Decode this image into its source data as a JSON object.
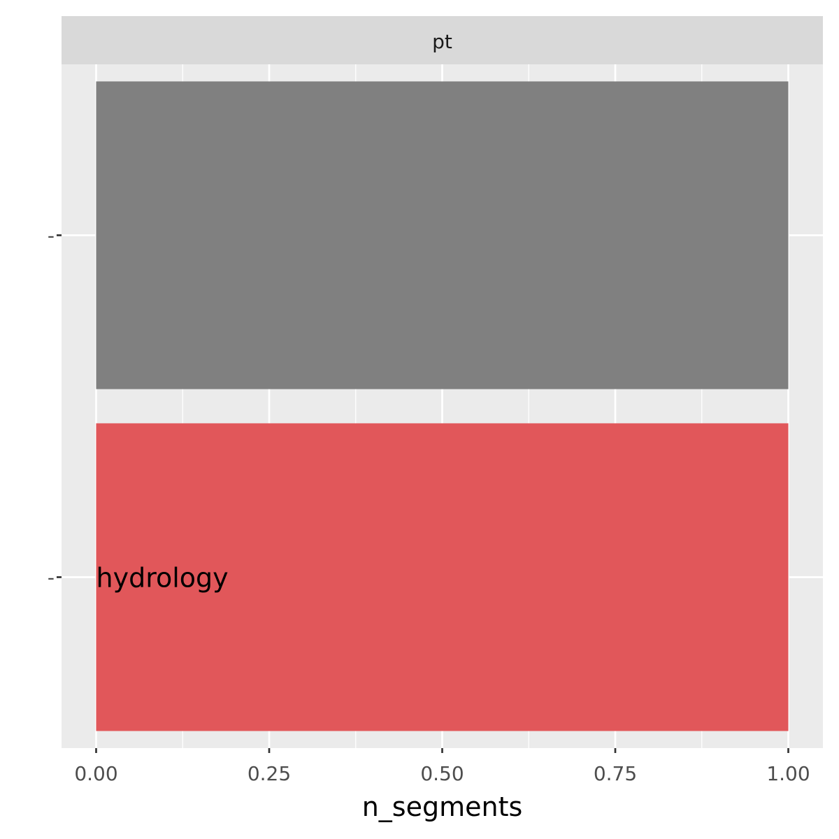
{
  "chart_data": {
    "type": "bar",
    "orientation": "horizontal",
    "facet": "pt",
    "xlabel": "n_segments",
    "ylabel": "",
    "xlim": [
      -0.05,
      1.05
    ],
    "x_ticks": [
      0.0,
      0.25,
      0.5,
      0.75,
      1.0
    ],
    "x_tick_labels": [
      "0.00",
      "0.25",
      "0.50",
      "0.75",
      "1.00"
    ],
    "categories": [
      "",
      "hydrology"
    ],
    "y_tick_labels": [
      "-",
      "-"
    ],
    "values": [
      1,
      1
    ],
    "bar_labels": [
      "",
      "hydrology"
    ],
    "colors": [
      "#808080",
      "#E1575A"
    ],
    "panel_background": "#EBEBEB",
    "strip_background": "#D9D9D9",
    "grid": true,
    "legend": "none"
  }
}
